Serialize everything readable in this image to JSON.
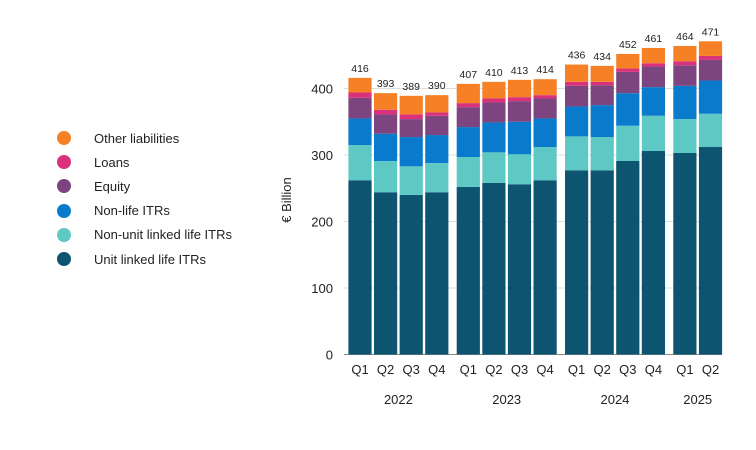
{
  "chart_data": {
    "type": "stacked-bar",
    "ylabel": "€ Billion",
    "ylim": [
      0,
      450
    ],
    "yticks": [
      0,
      100,
      200,
      300,
      400
    ],
    "groups": [
      {
        "year": "2022",
        "quarters": [
          "Q1",
          "Q2",
          "Q3",
          "Q4"
        ]
      },
      {
        "year": "2023",
        "quarters": [
          "Q1",
          "Q2",
          "Q3",
          "Q4"
        ]
      },
      {
        "year": "2024",
        "quarters": [
          "Q1",
          "Q2",
          "Q3",
          "Q4"
        ]
      },
      {
        "year": "2025",
        "quarters": [
          "Q1",
          "Q2"
        ]
      }
    ],
    "totals": [
      416,
      393,
      389,
      390,
      407,
      410,
      413,
      414,
      436,
      434,
      452,
      461,
      464,
      471
    ],
    "series": [
      {
        "name": "Unit linked life ITRs",
        "color": "#0c5470",
        "values": [
          262,
          244,
          240,
          244,
          252,
          258,
          256,
          262,
          277,
          277,
          291,
          306,
          303,
          312
        ]
      },
      {
        "name": "Non-unit linked life ITRs",
        "color": "#5ec8c4",
        "values": [
          53,
          47,
          43,
          44,
          45,
          46,
          45,
          50,
          51,
          50,
          53,
          53,
          51,
          50
        ]
      },
      {
        "name": "Non-life ITRs",
        "color": "#0a7acd",
        "values": [
          40,
          41,
          44,
          42,
          45,
          45,
          49,
          43,
          45,
          48,
          49,
          43,
          50,
          50
        ]
      },
      {
        "name": "Equity",
        "color": "#7d4580",
        "values": [
          31,
          29,
          27,
          29,
          30,
          30,
          31,
          30,
          31,
          30,
          32,
          31,
          31,
          31
        ]
      },
      {
        "name": "Loans",
        "color": "#d9317c",
        "values": [
          8,
          7,
          7,
          5,
          6,
          6,
          6,
          5,
          6,
          5,
          5,
          5,
          6,
          6
        ]
      },
      {
        "name": "Other liabilities",
        "color": "#f58025",
        "values": [
          22,
          25,
          28,
          26,
          29,
          25,
          26,
          24,
          26,
          24,
          22,
          23,
          23,
          22
        ]
      }
    ],
    "legend_order": [
      "Other liabilities",
      "Loans",
      "Equity",
      "Non-life ITRs",
      "Non-unit linked life ITRs",
      "Unit linked life ITRs"
    ]
  }
}
